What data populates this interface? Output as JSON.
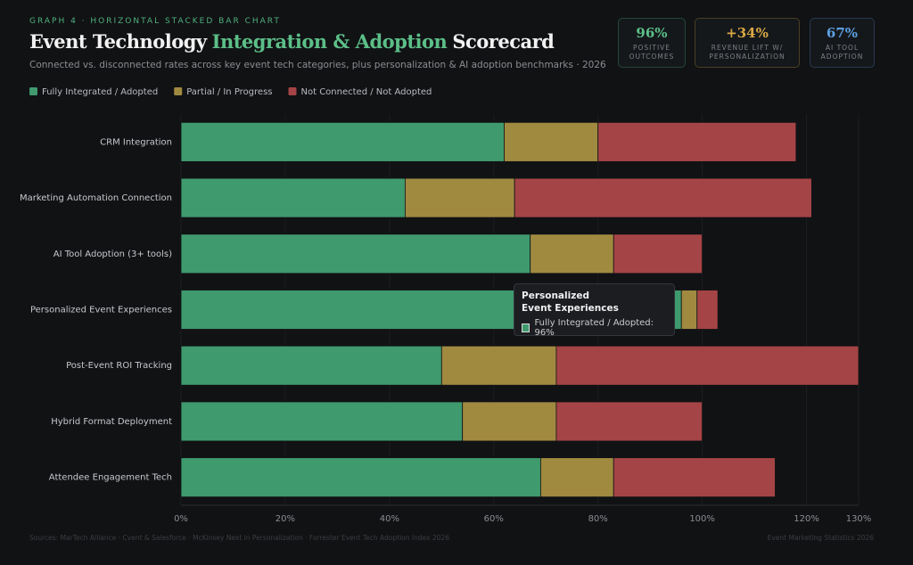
{
  "header": {
    "eyebrow": "GRAPH 4 · HORIZONTAL STACKED BAR CHART",
    "title_parts": [
      {
        "text": "Event Technology",
        "color": "#f2f2f2"
      },
      {
        "text": "Integration & Adoption",
        "color": "#5cbf88"
      },
      {
        "text": "Scorecard",
        "color": "#f2f2f2"
      }
    ],
    "subtitle": "Connected vs. disconnected rates across key event tech categories, plus personalization & AI adoption benchmarks · 2026"
  },
  "kpis": [
    {
      "value": "96%",
      "label": "POSITIVE OUTCOMES",
      "color": "#5cbf88",
      "border": "#24473a"
    },
    {
      "value": "+34%",
      "label": "REVENUE LIFT W/ PERSONALIZATION",
      "color": "#d9a845",
      "border": "#4a3f24"
    },
    {
      "value": "67%",
      "label": "AI TOOL ADOPTION",
      "color": "#5b9fe0",
      "border": "#27394f"
    }
  ],
  "chart_data": {
    "type": "stacked-bar-horizontal",
    "categories": [
      "CRM Integration",
      "Marketing Automation Connection",
      "AI Tool Adoption (3+ tools)",
      "Personalized Event Experiences",
      "Post-Event ROI Tracking",
      "Hybrid Format Deployment",
      "Attendee Engagement Tech"
    ],
    "series": [
      {
        "name": "Fully Integrated / Adopted",
        "color": "#3f9a6e",
        "values": [
          62,
          43,
          67,
          96,
          50,
          54,
          69
        ]
      },
      {
        "name": "Partial / In Progress",
        "color": "#a08a40",
        "values": [
          18,
          21,
          16,
          3,
          22,
          18,
          14
        ]
      },
      {
        "name": "Not Connected / Not Adopted",
        "color": "#a54446",
        "values": [
          38,
          57,
          17,
          4,
          58,
          28,
          31
        ]
      }
    ],
    "xlim": [
      0,
      130
    ],
    "xticks": [
      {
        "value": 0,
        "label": "0%"
      },
      {
        "value": 20,
        "label": "20%"
      },
      {
        "value": 40,
        "label": "40%"
      },
      {
        "value": 60,
        "label": "60%"
      },
      {
        "value": 80,
        "label": "80%"
      },
      {
        "value": 100,
        "label": "100%"
      },
      {
        "value": 120,
        "label": "120%"
      },
      {
        "value": 130,
        "label": "130%"
      }
    ],
    "grid": true,
    "tooltip": {
      "title": "Personalized Event Experiences",
      "text": "Fully Integrated / Adopted: 96%"
    }
  },
  "footer": {
    "sources": "Sources: MarTech Alliance · Cvent & Salesforce · McKinsey Next in Personalization · Forrester Event Tech Adoption Index 2026",
    "note": "Event Marketing Statistics 2026"
  }
}
